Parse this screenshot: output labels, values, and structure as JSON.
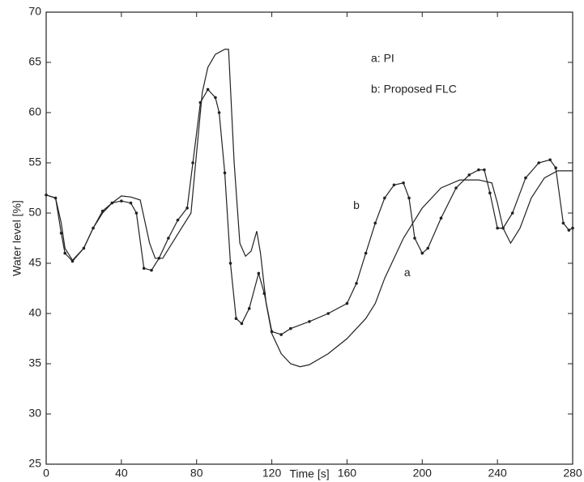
{
  "chart_data": {
    "type": "line",
    "xlabel": "Time [s]",
    "ylabel": "Water level [%]",
    "xlim": [
      0,
      280
    ],
    "xticks": [
      0,
      40,
      80,
      120,
      160,
      200,
      240,
      280
    ],
    "ylim": [
      25,
      70
    ],
    "yticks": [
      25,
      30,
      35,
      40,
      45,
      50,
      55,
      60,
      65,
      70
    ],
    "legend_position": "upper right",
    "annotations": [
      {
        "text": "a",
        "x": 192,
        "y": 44
      },
      {
        "text": "b",
        "x": 165,
        "y": 50.7
      }
    ],
    "series": [
      {
        "name": "a: PI",
        "color": "#222222",
        "markers": false,
        "x": [
          0,
          5,
          8,
          10,
          14,
          20,
          25,
          30,
          35,
          40,
          45,
          50,
          55,
          58,
          62,
          67,
          72,
          77,
          80,
          83,
          86,
          90,
          95,
          97,
          100,
          103,
          106,
          109,
          112,
          114,
          117,
          120,
          125,
          130,
          135,
          140,
          150,
          160,
          170,
          175,
          180,
          190,
          200,
          210,
          220,
          230,
          237,
          240,
          243,
          247,
          252,
          258,
          265,
          272,
          280
        ],
        "values": [
          51.8,
          51.5,
          49,
          46.5,
          45.3,
          46.5,
          48.5,
          50,
          51,
          51.7,
          51.6,
          51.3,
          47,
          45.5,
          45.5,
          47,
          48.5,
          50,
          56,
          62,
          64.5,
          65.8,
          66.3,
          66.3,
          55,
          47,
          45.7,
          46.2,
          48.2,
          46,
          41,
          38,
          36,
          35,
          34.7,
          34.9,
          36,
          37.5,
          39.5,
          41,
          43.5,
          47.5,
          50.5,
          52.5,
          53.3,
          53.3,
          53,
          51,
          48.5,
          47,
          48.5,
          51.5,
          53.5,
          54.2,
          54.2
        ]
      },
      {
        "name": "b: Proposed FLC",
        "color": "#222222",
        "markers": true,
        "x": [
          0,
          5,
          8,
          10,
          14,
          20,
          25,
          30,
          35,
          40,
          45,
          48,
          52,
          56,
          60,
          65,
          70,
          75,
          78,
          82,
          86,
          90,
          92,
          95,
          98,
          101,
          104,
          108,
          113,
          116,
          120,
          125,
          130,
          140,
          150,
          160,
          165,
          170,
          175,
          180,
          185,
          190,
          193,
          196,
          200,
          203,
          210,
          218,
          225,
          230,
          233,
          236,
          240,
          243,
          248,
          255,
          262,
          268,
          271,
          275,
          278,
          280
        ],
        "values": [
          51.8,
          51.5,
          48,
          46,
          45.2,
          46.5,
          48.5,
          50.2,
          51,
          51.2,
          51,
          50,
          44.5,
          44.3,
          45.5,
          47.5,
          49.3,
          50.5,
          55,
          61,
          62.3,
          61.5,
          60,
          54,
          45,
          39.5,
          39,
          40.5,
          44,
          42,
          38.2,
          37.9,
          38.5,
          39.2,
          40,
          41,
          43,
          46,
          49,
          51.5,
          52.8,
          53,
          51.5,
          47.5,
          46,
          46.5,
          49.5,
          52.5,
          53.8,
          54.3,
          54.3,
          52,
          48.5,
          48.5,
          50,
          53.5,
          55,
          55.3,
          54.5,
          49,
          48.3,
          48.5
        ]
      }
    ]
  }
}
